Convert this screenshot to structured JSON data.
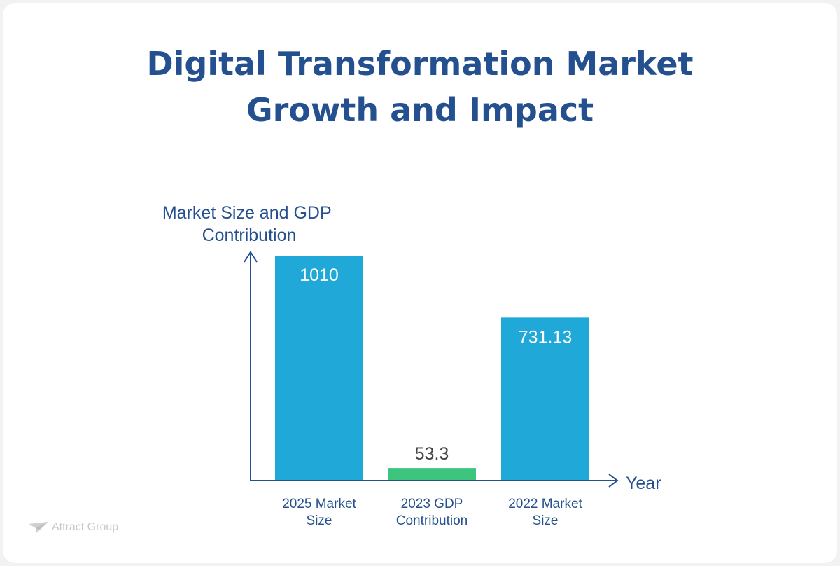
{
  "header": {
    "title_line1": "Digital Transformation Market",
    "title_line2": "Growth and Impact"
  },
  "brand": {
    "name": "Attract Group",
    "icon": "paper-plane-icon"
  },
  "colors": {
    "title": "#24508f",
    "bar_market": "#20a9d8",
    "bar_gdp": "#3dc57f",
    "axis": "#24508f"
  },
  "chart_data": {
    "type": "bar",
    "categories": [
      "2025 Market Size",
      "2023 GDP Contribution",
      "2022 Market Size"
    ],
    "category_lines": [
      [
        "2025 Market",
        "Size"
      ],
      [
        "2023 GDP",
        "Contribution"
      ],
      [
        "2022 Market",
        "Size"
      ]
    ],
    "values": [
      1010,
      53.3,
      731.13
    ],
    "value_labels": [
      "1010",
      "53.3",
      "731.13"
    ],
    "bar_colors": [
      "#20a9d8",
      "#3dc57f",
      "#20a9d8"
    ],
    "ylabel_lines": [
      "Market Size and GDP",
      "Contribution"
    ],
    "xlabel": "Year",
    "ylim": [
      0,
      1010
    ],
    "grid": false,
    "legend": "none"
  }
}
